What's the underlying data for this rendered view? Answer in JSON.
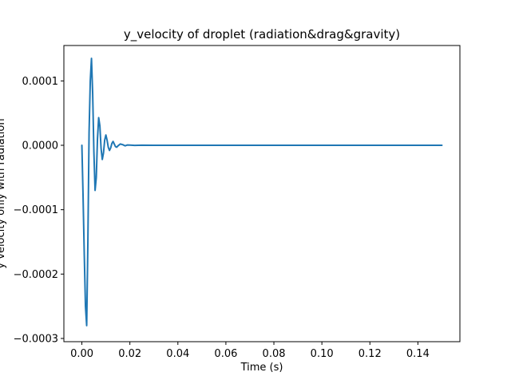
{
  "chart_data": {
    "type": "line",
    "title": "y_velocity of droplet (radiation&drag&gravity)",
    "xlabel": "Time (s)",
    "ylabel": "y velocity only with radiation",
    "xlim": [
      -0.0075,
      0.1575
    ],
    "ylim": [
      -0.000305,
      0.000155
    ],
    "x_ticks": [
      0.0,
      0.02,
      0.04,
      0.06,
      0.08,
      0.1,
      0.12,
      0.14
    ],
    "x_tick_labels": [
      "0.00",
      "0.02",
      "0.04",
      "0.06",
      "0.08",
      "0.10",
      "0.12",
      "0.14"
    ],
    "y_ticks": [
      -0.0003,
      -0.0002,
      -0.0001,
      0.0,
      0.0001
    ],
    "y_tick_labels": [
      "−0.0003",
      "−0.0002",
      "−0.0001",
      "0.0000",
      "0.0001"
    ],
    "grid": false,
    "series": [
      {
        "color": "#1f77b4",
        "x": [
          0.0,
          0.0005,
          0.001,
          0.0015,
          0.002,
          0.0025,
          0.003,
          0.0035,
          0.004,
          0.0045,
          0.005,
          0.0055,
          0.006,
          0.0065,
          0.007,
          0.0075,
          0.008,
          0.0085,
          0.009,
          0.0095,
          0.01,
          0.0105,
          0.011,
          0.0115,
          0.012,
          0.0125,
          0.013,
          0.0135,
          0.014,
          0.0145,
          0.015,
          0.016,
          0.017,
          0.018,
          0.019,
          0.02,
          0.022,
          0.025,
          0.03,
          0.05,
          0.08,
          0.1,
          0.12,
          0.15
        ],
        "y": [
          0.0,
          -8e-05,
          -0.00017,
          -0.00025,
          -0.00028,
          -0.00015,
          2e-05,
          0.0001,
          0.000135,
          8e-05,
          -1e-05,
          -7e-05,
          -5e-05,
          1e-05,
          4.3e-05,
          3e-05,
          -5e-06,
          -2.2e-05,
          -1.2e-05,
          8e-06,
          1.6e-05,
          8e-06,
          -3e-06,
          -8e-06,
          -4e-06,
          3e-06,
          6e-06,
          2e-06,
          -2e-06,
          -3e-06,
          -1e-06,
          2e-06,
          1e-06,
          -8e-07,
          5e-07,
          3e-07,
          -2e-07,
          1e-07,
          0.0,
          0.0,
          0.0,
          0.0,
          0.0,
          0.0
        ]
      }
    ]
  }
}
